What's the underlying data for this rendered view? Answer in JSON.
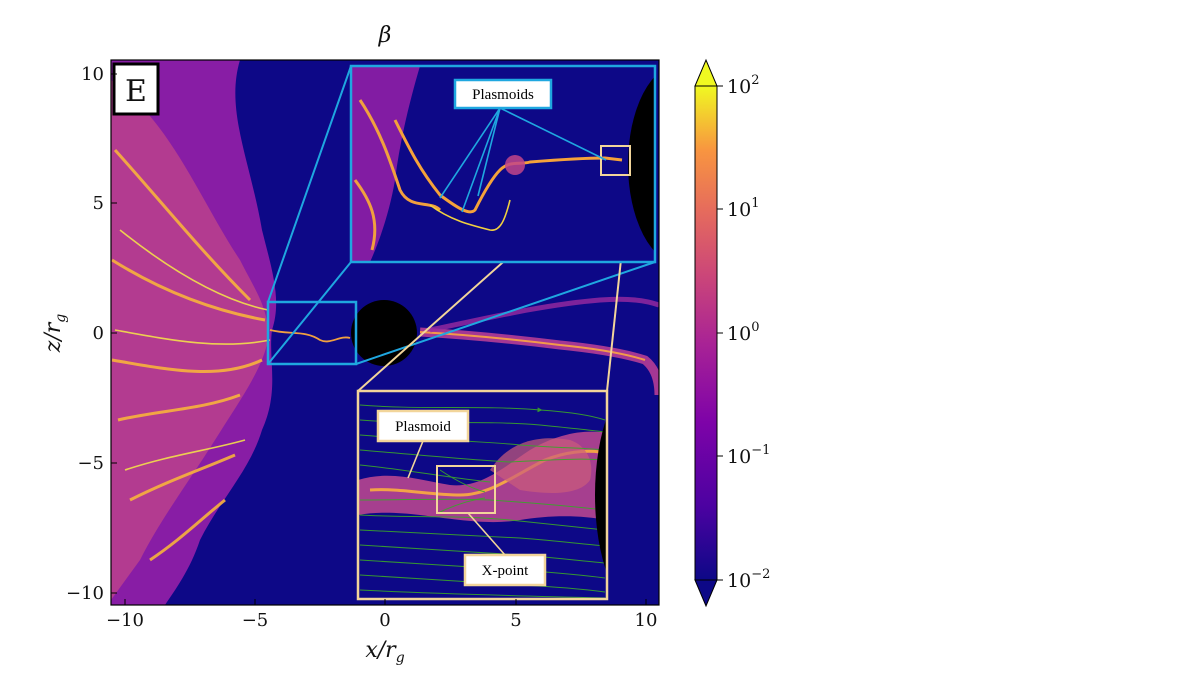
{
  "figure": {
    "quantity_title": "β",
    "panel_label": "E",
    "xlabel": "x/r",
    "xlabel_sub": "g",
    "ylabel": "z/r",
    "ylabel_sub": "g",
    "x_ticks": [
      "−10",
      "−5",
      "0",
      "5",
      "10"
    ],
    "y_ticks": [
      "10",
      "5",
      "0",
      "−5",
      "−10"
    ],
    "xlim": [
      -10.5,
      10.5
    ],
    "ylim": [
      -10.5,
      10.5
    ],
    "colorbar": {
      "scale": "log",
      "range": [
        0.01,
        100
      ],
      "colormap": "plasma",
      "ticks": [
        {
          "base": "10",
          "exp": "2"
        },
        {
          "base": "10",
          "exp": "1"
        },
        {
          "base": "10",
          "exp": "0"
        },
        {
          "base": "10",
          "exp": "−1"
        },
        {
          "base": "10",
          "exp": "−2"
        }
      ]
    },
    "annotations": {
      "plasmoids": "Plasmoids",
      "plasmoid": "Plasmoid",
      "xpoint": "X-point"
    },
    "colors": {
      "background": "#0d0887",
      "zoom1_box": "#1fa7e0",
      "zoom2_box": "#f2d59a",
      "field_lines": "#3aa62a",
      "black_hole": "#000000"
    }
  }
}
